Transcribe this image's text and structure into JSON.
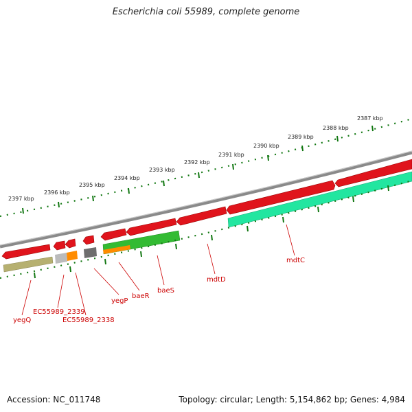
{
  "title": "Escherichia coli 55989, complete genome",
  "footer": {
    "accession": "Accession: NC_011748",
    "summary": "Topology: circular; Length: 5,154,862 bp; Genes: 4,984"
  },
  "colors": {
    "gene_red": "#e0141c",
    "label_red": "#cc0000",
    "green": "#33bb33",
    "orange": "#ff8c00",
    "teal": "#22e6a0",
    "olive": "#b6b070",
    "grey": "#777777",
    "light_grey": "#bbbbbb",
    "tick_green": "#117711",
    "backbone": "#8a8a8a"
  },
  "scale_labels": [
    {
      "label": "2397 kbp"
    },
    {
      "label": "2396 kbp"
    },
    {
      "label": "2395 kbp"
    },
    {
      "label": "2394 kbp"
    },
    {
      "label": "2393 kbp"
    },
    {
      "label": "2392 kbp"
    },
    {
      "label": "2391 kbp"
    },
    {
      "label": "2390 kbp"
    },
    {
      "label": "2389 kbp"
    },
    {
      "label": "2388 kbp"
    },
    {
      "label": "2387 kbp"
    }
  ],
  "gene_labels": [
    {
      "label": "yegQ"
    },
    {
      "label": "EC55989_2339"
    },
    {
      "label": "EC55989_2338"
    },
    {
      "label": "yegP"
    },
    {
      "label": "baeR"
    },
    {
      "label": "baeS"
    },
    {
      "label": "mdtD"
    },
    {
      "label": "mdtC"
    }
  ]
}
